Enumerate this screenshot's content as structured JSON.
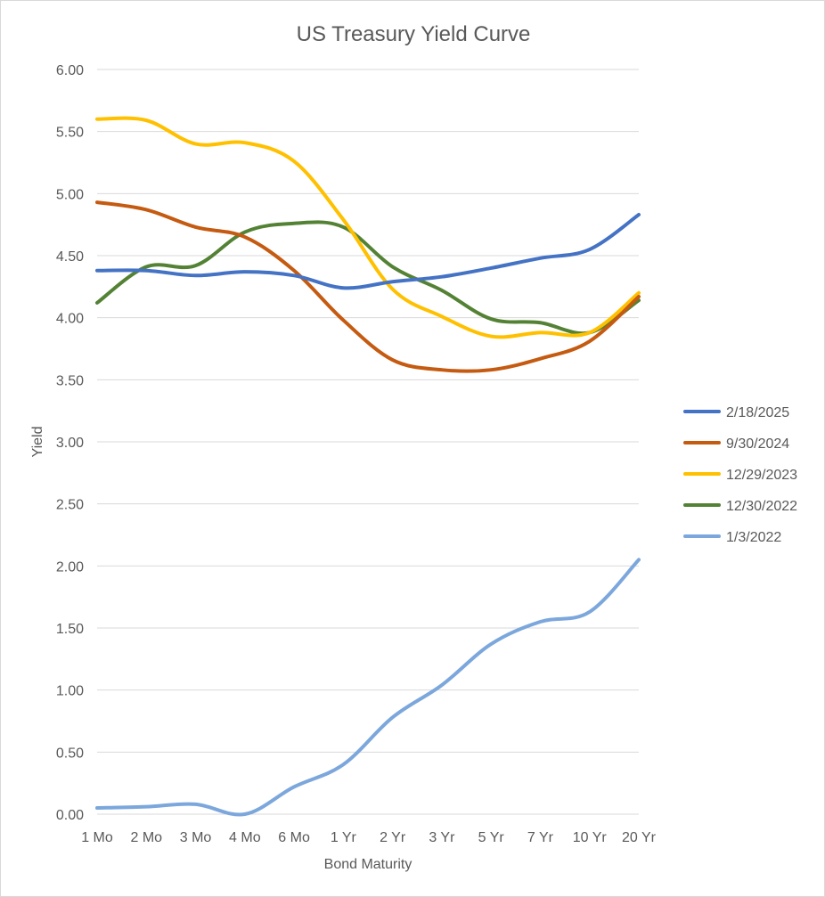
{
  "chart_data": {
    "type": "line",
    "title": "US Treasury Yield Curve",
    "xlabel": "Bond Maturity",
    "ylabel": "Yield",
    "categories": [
      "1 Mo",
      "2 Mo",
      "3 Mo",
      "4 Mo",
      "6 Mo",
      "1 Yr",
      "2 Yr",
      "3 Yr",
      "5 Yr",
      "7 Yr",
      "10 Yr",
      "20 Yr"
    ],
    "ylim": [
      0,
      6
    ],
    "yticks": [
      "0.00",
      "0.50",
      "1.00",
      "1.50",
      "2.00",
      "2.50",
      "3.00",
      "3.50",
      "4.00",
      "4.50",
      "5.00",
      "5.50",
      "6.00"
    ],
    "grid": true,
    "legend_position": "right",
    "series": [
      {
        "name": "2/18/2025",
        "color": "#4472c4",
        "values": [
          4.38,
          4.38,
          4.34,
          4.37,
          4.34,
          4.24,
          4.29,
          4.33,
          4.4,
          4.48,
          4.55,
          4.83
        ]
      },
      {
        "name": "9/30/2024",
        "color": "#c55a11",
        "values": [
          4.93,
          4.87,
          4.73,
          4.65,
          4.38,
          3.98,
          3.66,
          3.58,
          3.58,
          3.67,
          3.81,
          4.17
        ]
      },
      {
        "name": "12/29/2023",
        "color": "#ffc000",
        "values": [
          5.6,
          5.59,
          5.4,
          5.41,
          5.26,
          4.79,
          4.23,
          4.01,
          3.85,
          3.88,
          3.88,
          4.2
        ]
      },
      {
        "name": "12/30/2022",
        "color": "#548235",
        "values": [
          4.12,
          4.41,
          4.42,
          4.69,
          4.76,
          4.73,
          4.41,
          4.22,
          3.99,
          3.96,
          3.88,
          4.14
        ]
      },
      {
        "name": "1/3/2022",
        "color": "#7ca7dc",
        "values": [
          0.05,
          0.06,
          0.08,
          0.0,
          0.22,
          0.4,
          0.78,
          1.04,
          1.37,
          1.55,
          1.63,
          2.05
        ]
      }
    ]
  }
}
